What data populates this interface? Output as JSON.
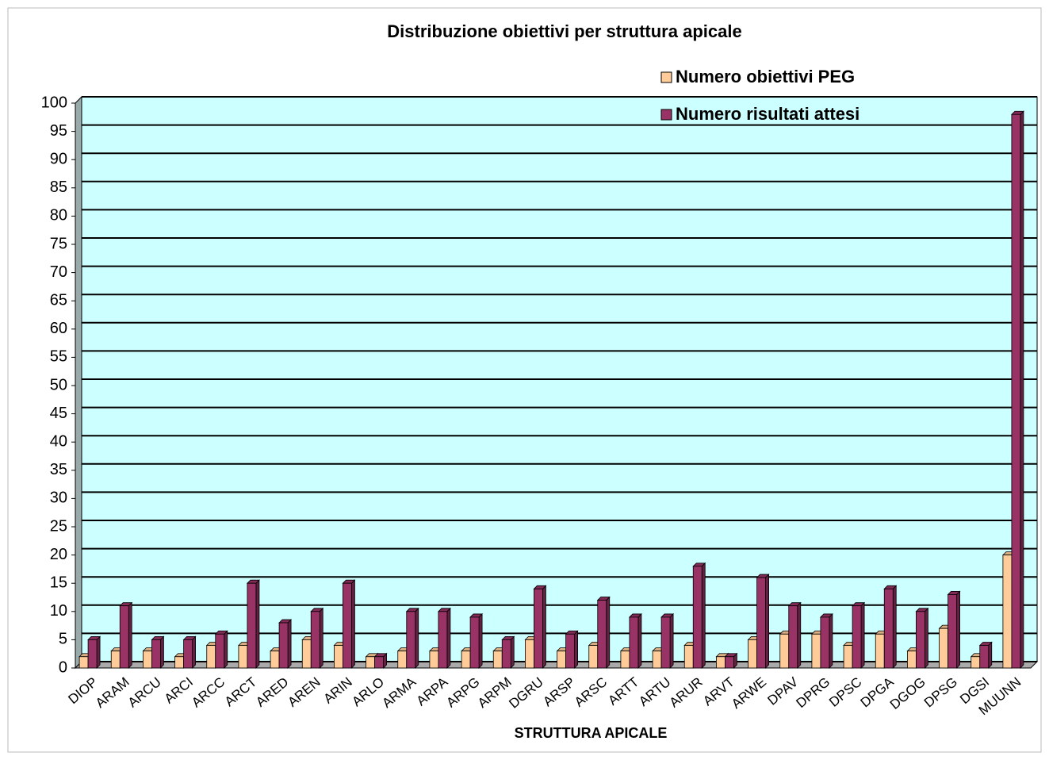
{
  "chart_data": {
    "type": "bar",
    "title": "Distribuzione obiettivi per struttura apicale",
    "x_label": "STRUTTURA APICALE",
    "categories": [
      "DIOP",
      "ARAM",
      "ARCU",
      "ARCI",
      "ARCC",
      "ARCT",
      "ARED",
      "AREN",
      "ARIN",
      "ARLO",
      "ARMA",
      "ARPA",
      "ARPG",
      "ARPM",
      "DGRU",
      "ARSP",
      "ARSC",
      "ARTT",
      "ARTU",
      "ARUR",
      "ARVT",
      "ARWE",
      "DPAV",
      "DPRG",
      "DPSC",
      "DPGA",
      "DGOG",
      "DPSG",
      "DGSI",
      "MUUNN"
    ],
    "series": [
      {
        "name": "Numero obiettivi PEG",
        "color": "#ffcc99",
        "values": [
          2,
          3,
          3,
          2,
          4,
          4,
          3,
          5,
          4,
          2,
          3,
          3,
          3,
          3,
          5,
          3,
          4,
          3,
          3,
          4,
          2,
          5,
          6,
          6,
          4,
          6,
          3,
          7,
          2,
          20
        ]
      },
      {
        "name": "Numero risultati attesi",
        "color": "#993366",
        "values": [
          5,
          11,
          5,
          5,
          6,
          15,
          8,
          10,
          15,
          2,
          10,
          10,
          9,
          5,
          14,
          6,
          12,
          9,
          9,
          18,
          2,
          16,
          11,
          9,
          11,
          14,
          10,
          13,
          4,
          98
        ]
      }
    ],
    "ylim": [
      0,
      100
    ],
    "yticks": [
      0,
      5,
      10,
      15,
      20,
      25,
      30,
      35,
      40,
      45,
      50,
      55,
      60,
      65,
      70,
      75,
      80,
      85,
      90,
      95,
      100
    ],
    "grid": true,
    "legend": "top-right"
  }
}
